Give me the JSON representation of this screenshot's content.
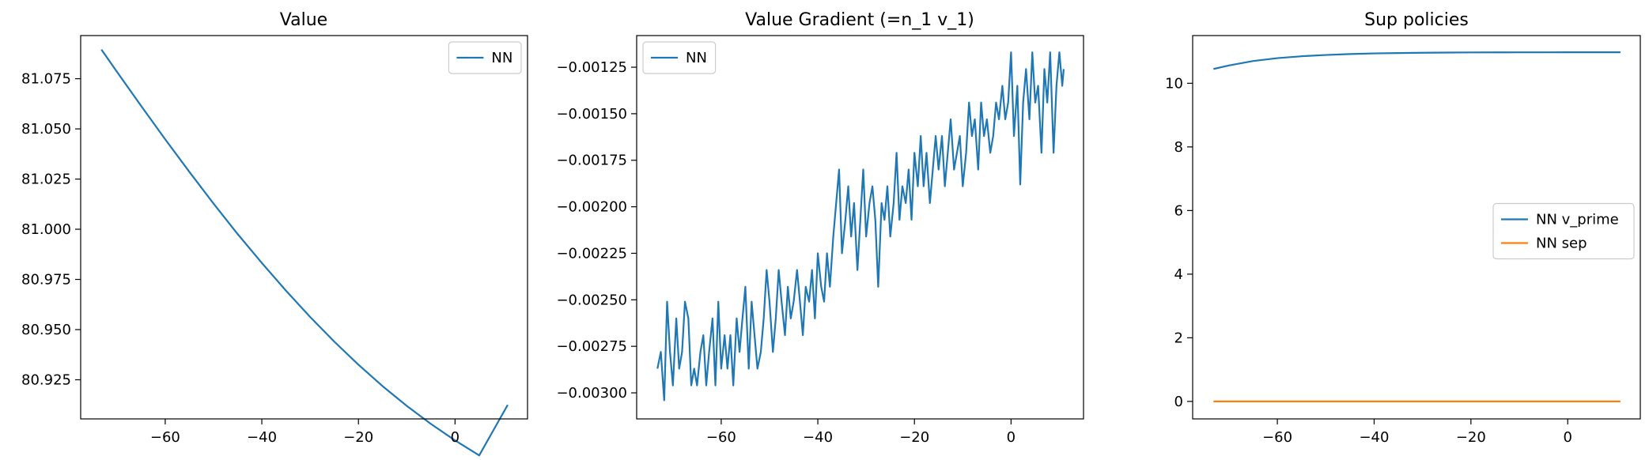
{
  "chart_data": [
    {
      "type": "line",
      "title": "Value",
      "xlabel": "",
      "ylabel": "",
      "xlim": [
        -77.5,
        15
      ],
      "ylim": [
        80.9055,
        81.0965
      ],
      "xticks": [
        -60,
        -40,
        -20,
        0
      ],
      "xtick_labels": [
        "−60",
        "−40",
        "−20",
        "0"
      ],
      "yticks": [
        80.925,
        80.95,
        80.975,
        81.0,
        81.025,
        81.05,
        81.075
      ],
      "ytick_labels": [
        "80.925",
        "80.950",
        "80.975",
        "81.000",
        "81.025",
        "81.050",
        "81.075"
      ],
      "legend": "top-right",
      "grid": false,
      "series": [
        {
          "name": "NN",
          "color": "#1f77b4",
          "x": [
            -73.2,
            -70,
            -65,
            -60,
            -55,
            -50,
            -45,
            -40,
            -35,
            -30,
            -25,
            -20,
            -15,
            -10,
            -5,
            0,
            5,
            10.9
          ],
          "values": [
            81.0895,
            81.0785,
            81.0615,
            81.0448,
            81.0286,
            81.0128,
            80.9976,
            80.9832,
            80.9694,
            80.9563,
            80.944,
            80.9325,
            80.9218,
            80.912,
            80.903,
            80.8948,
            80.8873,
            80.9125
          ]
        }
      ]
    },
    {
      "type": "line",
      "title": "Value Gradient (=n_1 v_1)",
      "xlabel": "",
      "ylabel": "",
      "xlim": [
        -77.5,
        15
      ],
      "ylim": [
        -0.00314,
        -0.00108
      ],
      "xticks": [
        -60,
        -40,
        -20,
        0
      ],
      "xtick_labels": [
        "−60",
        "−40",
        "−20",
        "0"
      ],
      "yticks": [
        -0.003,
        -0.00275,
        -0.0025,
        -0.00225,
        -0.002,
        -0.00175,
        -0.0015,
        -0.00125
      ],
      "ytick_labels": [
        "−0.00300",
        "−0.00275",
        "−0.00250",
        "−0.00225",
        "−0.00200",
        "−0.00175",
        "−0.00150",
        "−0.00125"
      ],
      "legend": "top-left",
      "grid": false,
      "series": [
        {
          "name": "NN",
          "color": "#1f77b4",
          "x": [
            -73.2,
            -72.5,
            -71.8,
            -71.2,
            -70.6,
            -70.0,
            -69.3,
            -68.7,
            -68.1,
            -67.5,
            -66.8,
            -66.2,
            -65.6,
            -65.0,
            -64.3,
            -63.7,
            -63.1,
            -62.5,
            -61.8,
            -61.2,
            -60.6,
            -60.0,
            -59.3,
            -58.7,
            -58.1,
            -57.5,
            -56.8,
            -56.2,
            -55.6,
            -55.0,
            -54.3,
            -53.7,
            -53.1,
            -52.5,
            -51.8,
            -51.2,
            -50.6,
            -50.0,
            -49.3,
            -48.7,
            -48.1,
            -47.5,
            -46.8,
            -46.2,
            -45.6,
            -45.0,
            -44.3,
            -43.7,
            -43.1,
            -42.5,
            -41.8,
            -41.2,
            -40.6,
            -40.0,
            -39.3,
            -38.7,
            -38.1,
            -37.5,
            -36.8,
            -36.2,
            -35.6,
            -35.0,
            -34.3,
            -33.7,
            -33.1,
            -32.5,
            -31.8,
            -31.2,
            -30.6,
            -30.0,
            -29.3,
            -28.7,
            -28.1,
            -27.5,
            -26.8,
            -26.2,
            -25.6,
            -25.0,
            -24.3,
            -23.7,
            -23.1,
            -22.5,
            -21.8,
            -21.2,
            -20.6,
            -20.0,
            -19.3,
            -18.7,
            -18.1,
            -17.5,
            -16.8,
            -16.2,
            -15.6,
            -15.0,
            -14.3,
            -13.7,
            -13.1,
            -12.5,
            -11.8,
            -11.2,
            -10.6,
            -10.0,
            -9.3,
            -8.7,
            -8.1,
            -7.5,
            -6.8,
            -6.2,
            -5.6,
            -5.0,
            -4.3,
            -3.7,
            -3.1,
            -2.5,
            -1.8,
            -1.2,
            -0.6,
            0.0,
            0.6,
            1.3,
            1.9,
            2.5,
            3.1,
            3.8,
            4.4,
            5.0,
            5.6,
            6.3,
            6.9,
            7.5,
            8.1,
            8.8,
            9.4,
            10.0,
            10.6,
            10.9
          ],
          "values": [
            -0.00287,
            -0.00278,
            -0.00304,
            -0.00251,
            -0.00278,
            -0.00296,
            -0.0026,
            -0.00287,
            -0.00278,
            -0.00251,
            -0.0026,
            -0.00296,
            -0.00287,
            -0.00296,
            -0.00278,
            -0.00269,
            -0.00296,
            -0.00278,
            -0.0026,
            -0.00296,
            -0.00251,
            -0.00287,
            -0.00269,
            -0.00287,
            -0.00269,
            -0.00296,
            -0.0026,
            -0.00278,
            -0.0026,
            -0.00243,
            -0.00287,
            -0.00251,
            -0.00269,
            -0.00287,
            -0.00278,
            -0.0026,
            -0.00234,
            -0.00251,
            -0.00278,
            -0.0026,
            -0.00234,
            -0.00251,
            -0.00269,
            -0.00243,
            -0.0026,
            -0.00251,
            -0.00234,
            -0.00251,
            -0.00269,
            -0.00243,
            -0.00251,
            -0.00234,
            -0.0026,
            -0.00225,
            -0.00243,
            -0.00251,
            -0.00225,
            -0.00243,
            -0.00216,
            -0.00198,
            -0.0018,
            -0.00225,
            -0.00207,
            -0.00189,
            -0.00216,
            -0.00198,
            -0.00234,
            -0.00207,
            -0.0018,
            -0.00216,
            -0.00198,
            -0.00189,
            -0.00207,
            -0.00243,
            -0.00198,
            -0.00207,
            -0.00189,
            -0.00216,
            -0.00198,
            -0.00171,
            -0.00207,
            -0.00189,
            -0.00198,
            -0.0018,
            -0.00207,
            -0.00171,
            -0.00189,
            -0.00162,
            -0.00189,
            -0.00171,
            -0.00198,
            -0.0018,
            -0.00162,
            -0.0018,
            -0.00162,
            -0.00189,
            -0.00171,
            -0.00153,
            -0.0018,
            -0.00171,
            -0.00162,
            -0.00189,
            -0.00171,
            -0.00144,
            -0.00162,
            -0.00153,
            -0.0018,
            -0.00144,
            -0.00162,
            -0.00153,
            -0.00171,
            -0.00162,
            -0.00144,
            -0.00153,
            -0.00135,
            -0.00153,
            -0.00144,
            -0.00117,
            -0.00162,
            -0.00135,
            -0.00188,
            -0.00144,
            -0.00126,
            -0.00153,
            -0.00117,
            -0.00144,
            -0.00135,
            -0.00171,
            -0.00126,
            -0.00144,
            -0.00117,
            -0.00171,
            -0.00135,
            -0.00117,
            -0.00135,
            -0.00126
          ]
        }
      ]
    },
    {
      "type": "line",
      "title": "Sup policies",
      "xlabel": "",
      "ylabel": "",
      "xlim": [
        -77.5,
        15
      ],
      "ylim": [
        -0.55,
        11.5
      ],
      "xticks": [
        -60,
        -40,
        -20,
        0
      ],
      "xtick_labels": [
        "−60",
        "−40",
        "−20",
        "0"
      ],
      "yticks": [
        0,
        2,
        4,
        6,
        8,
        10
      ],
      "ytick_labels": [
        "0",
        "2",
        "4",
        "6",
        "8",
        "10"
      ],
      "legend": "center-right",
      "grid": false,
      "series": [
        {
          "name": "NN v_prime",
          "color": "#1f77b4",
          "x": [
            -73.2,
            -70,
            -65,
            -60,
            -55,
            -50,
            -45,
            -40,
            -35,
            -30,
            -25,
            -20,
            -15,
            -10,
            -5,
            0,
            5,
            10.9
          ],
          "values": [
            10.45,
            10.56,
            10.7,
            10.79,
            10.85,
            10.89,
            10.92,
            10.94,
            10.95,
            10.96,
            10.965,
            10.97,
            10.972,
            10.973,
            10.974,
            10.975,
            10.975,
            10.975
          ]
        },
        {
          "name": "NN sep",
          "color": "#ff7f0e",
          "x": [
            -73.2,
            10.9
          ],
          "values": [
            0.0,
            0.0
          ]
        }
      ]
    }
  ]
}
